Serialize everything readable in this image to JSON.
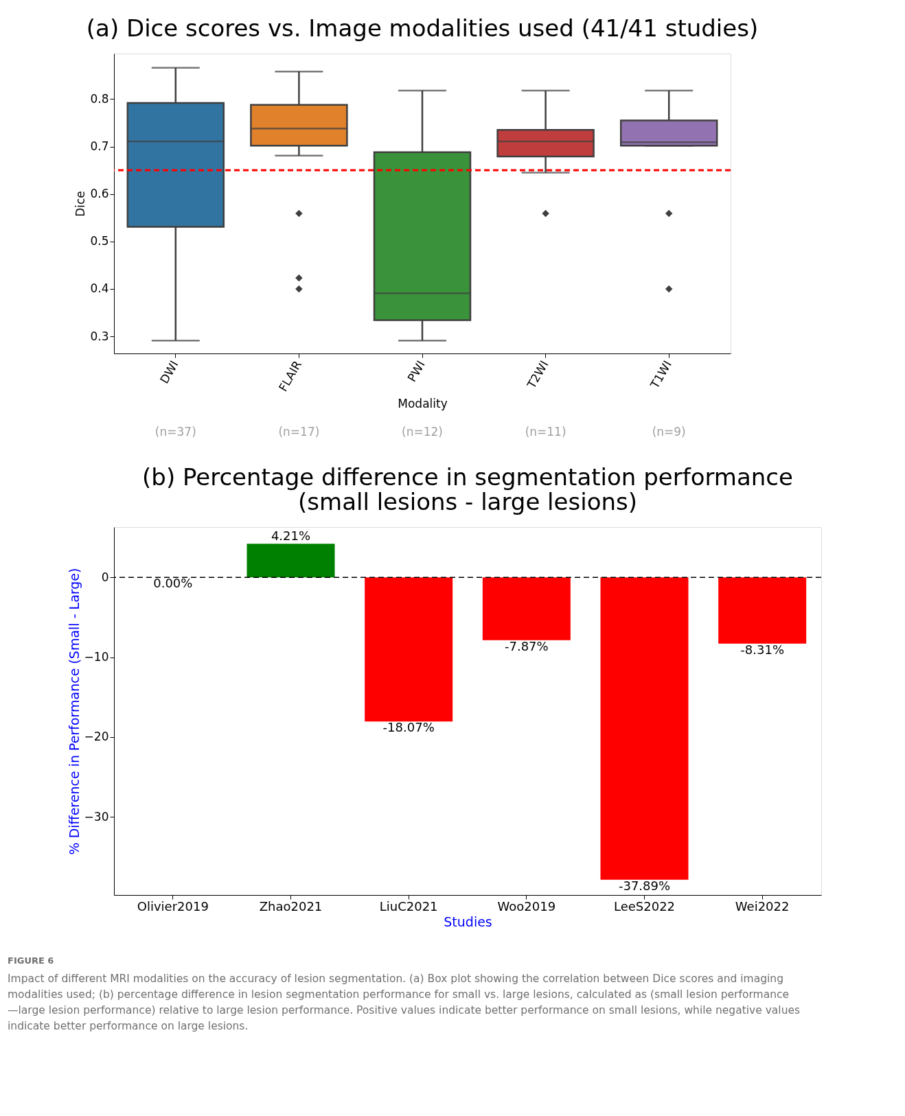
{
  "chart_data": [
    {
      "type": "box",
      "title": "(a) Dice scores vs. Image modalities used (41/41 studies)",
      "xlabel": "Modality",
      "ylabel": "Dice",
      "categories": [
        "DWI",
        "FLAIR",
        "PWI",
        "T2WI",
        "T1WI"
      ],
      "colors": [
        "#3274a1",
        "#e1812c",
        "#3a923a",
        "#c03d3e",
        "#9372b2"
      ],
      "boxes": [
        {
          "low": 0.291,
          "q1": 0.531,
          "median": 0.711,
          "q3": 0.792,
          "high": 0.866
        },
        {
          "low": 0.681,
          "q1": 0.702,
          "median": 0.738,
          "q3": 0.788,
          "high": 0.858,
          "outliers": [
            0.559,
            0.423,
            0.4
          ]
        },
        {
          "low": 0.291,
          "q1": 0.334,
          "median": 0.391,
          "q3": 0.688,
          "high": 0.818
        },
        {
          "low": 0.645,
          "q1": 0.679,
          "median": 0.711,
          "q3": 0.735,
          "high": 0.818,
          "outliers": [
            0.559
          ]
        },
        {
          "low": 0.702,
          "q1": 0.702,
          "median": 0.709,
          "q3": 0.755,
          "high": 0.818,
          "outliers": [
            0.559,
            0.4
          ]
        }
      ],
      "ylim": [
        0.264,
        0.896
      ],
      "yticks": [
        0.3,
        0.4,
        0.5,
        0.6,
        0.7,
        0.8
      ],
      "ref_lines": [
        {
          "axis": "y",
          "value": 0.65,
          "color": "#ff0000",
          "line_style": "dashed"
        }
      ],
      "annotations": [
        "(n=37)",
        "(n=17)",
        "(n=12)",
        "(n=11)",
        "(n=9)"
      ]
    },
    {
      "type": "bar",
      "title": "(b) Percentage difference in segmentation performance\n(small lesions - large lesions)",
      "xlabel": "Studies",
      "ylabel": "% Difference in Performance (Small - Large)",
      "categories": [
        "Olivier2019",
        "Zhao2021",
        "LiuC2021",
        "Woo2019",
        "LeeS2022",
        "Wei2022"
      ],
      "values": [
        0.0,
        4.21,
        -18.07,
        -7.87,
        -37.89,
        -8.31
      ],
      "colors": [
        "#008000",
        "#008000",
        "#ff0000",
        "#ff0000",
        "#ff0000",
        "#ff0000"
      ],
      "value_labels": [
        "0.00%",
        "4.21%",
        "-18.07%",
        "-7.87%",
        "-37.89%",
        "-8.31%"
      ],
      "ylim": [
        -39.8,
        6.3
      ],
      "yticks": [
        0,
        -10,
        -20,
        -30
      ],
      "ref_lines": [
        {
          "axis": "y",
          "value": 0,
          "color": "#000000",
          "line_style": "dashed"
        }
      ],
      "annotations": [
        "FIGURE 6",
        "Impact of different MRI modalities on the accuracy of lesion segmentation. (a) Box plot showing the correlation between Dice scores and imaging modalities used; (b) percentage difference in lesion segmentation performance for small vs. large lesions, calculated as (small lesion performance —large lesion performance) relative to large lesion performance. Positive values indicate better performance on small lesions, while negative values indicate better performance on large lesions."
      ]
    }
  ]
}
